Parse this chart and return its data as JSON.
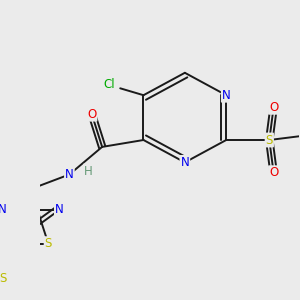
{
  "bg_color": "#ebebeb",
  "bond_color": "#1a1a1a",
  "bond_width": 1.4,
  "dbo": 0.06,
  "atom_colors": {
    "N": "#0000ee",
    "O": "#ee0000",
    "S": "#bbbb00",
    "Cl": "#00aa00",
    "H": "#669977",
    "C": "#1a1a1a"
  },
  "font_size": 8.5,
  "figsize": [
    3.0,
    3.0
  ],
  "dpi": 100
}
